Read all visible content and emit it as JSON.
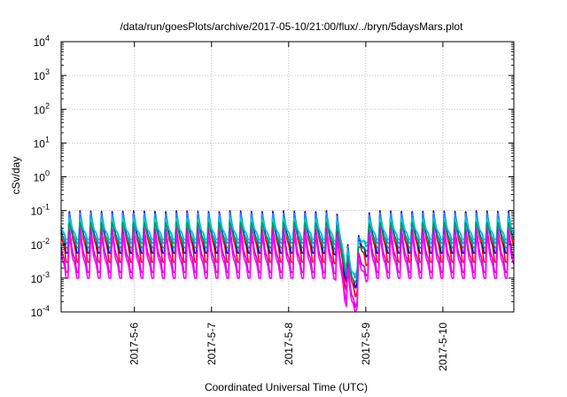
{
  "chart_data": {
    "type": "line",
    "title": "/data/run/goesPlots/archive/2017-05-10/21:00/flux/../bryn/5daysMars.plot",
    "xlabel": "Coordinated Universal Time (UTC)",
    "ylabel": "cSv/day",
    "y_scale": "log",
    "ylim": [
      0.0001,
      10000
    ],
    "y_ticks": [
      {
        "base": "10",
        "exp": "-4"
      },
      {
        "base": "10",
        "exp": "-3"
      },
      {
        "base": "10",
        "exp": "-2"
      },
      {
        "base": "10",
        "exp": "-1"
      },
      {
        "base": "10",
        "exp": "0"
      },
      {
        "base": "10",
        "exp": "1"
      },
      {
        "base": "10",
        "exp": "2"
      },
      {
        "base": "10",
        "exp": "3"
      },
      {
        "base": "10",
        "exp": "4"
      }
    ],
    "x_range_days": [
      5.05,
      10.92
    ],
    "x_ticks": [
      {
        "day": 6,
        "label": "2017-5-6"
      },
      {
        "day": 7,
        "label": "2017-5-7"
      },
      {
        "day": 8,
        "label": "2017-5-8"
      },
      {
        "day": 9,
        "label": "2017-5-9"
      },
      {
        "day": 10,
        "label": "2017-5-10"
      }
    ],
    "grid": true,
    "cycles_per_day": 7.2,
    "dip": {
      "center_day": 8.82,
      "width_days": 0.12,
      "depth_decades": 1.2
    },
    "series": [
      {
        "color": "#ff0000",
        "peak": 0.1,
        "trough": 0.003
      },
      {
        "color": "#0000cc",
        "peak": 0.095,
        "trough": 0.0055
      },
      {
        "color": "#1e90ff",
        "peak": 0.085,
        "trough": 0.011
      },
      {
        "color": "#00cccc",
        "peak": 0.06,
        "trough": 0.014
      },
      {
        "color": "#009966",
        "peak": 0.045,
        "trough": 0.008
      },
      {
        "color": "#cc00cc",
        "peak": 0.03,
        "trough": 0.0015
      },
      {
        "color": "#ff00ff",
        "peak": 0.02,
        "trough": 0.001
      }
    ]
  }
}
